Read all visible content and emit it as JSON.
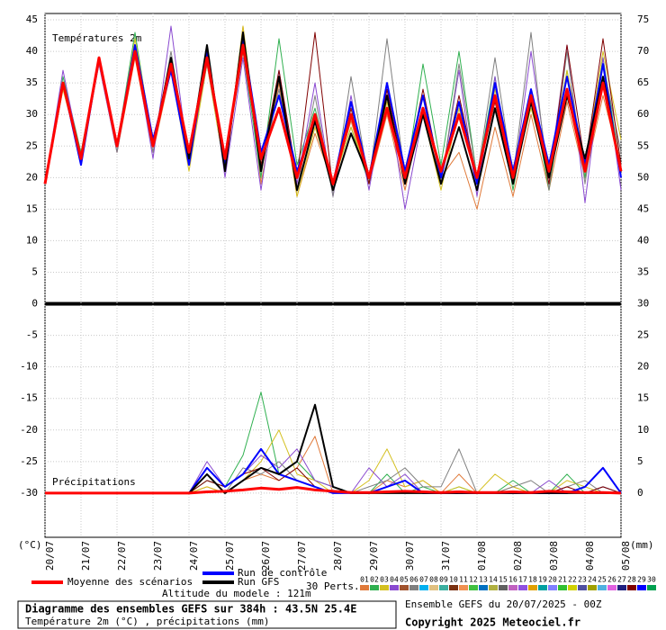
{
  "chart_data": {
    "type": "line",
    "temp_label": "Températures 2m",
    "precip_label": "Précipitations",
    "y_unit": "(°C)",
    "y2_unit": "(mm)",
    "categories": [
      "20/07",
      null,
      "21/07",
      null,
      "22/07",
      null,
      "23/07",
      null,
      "24/07",
      null,
      "25/07",
      null,
      "26/07",
      null,
      "27/07",
      null,
      "28/07",
      null,
      "29/07",
      null,
      "30/07",
      null,
      "31/07",
      null,
      "01/08",
      null,
      "02/08",
      null,
      "03/08",
      null,
      "04/08",
      null,
      "05/08"
    ],
    "ylim": [
      -37,
      46
    ],
    "yticks": [
      45,
      40,
      35,
      30,
      25,
      20,
      15,
      10,
      5,
      0,
      -5,
      -10,
      -15,
      -20,
      -25,
      -30
    ],
    "y2lim": [
      -7,
      76
    ],
    "y2ticks": [
      75,
      70,
      65,
      60,
      55,
      50,
      45,
      40,
      35,
      30,
      25,
      20,
      15,
      10,
      5,
      0
    ],
    "grid": true,
    "series": [
      {
        "name": "Moyenne des scénarios",
        "color": "#ff0000",
        "values": [
          19,
          35,
          23,
          39,
          25,
          40,
          25,
          38,
          24,
          39,
          23,
          41,
          23,
          31,
          20,
          30,
          19,
          30,
          20,
          31,
          20,
          31,
          21,
          30,
          20,
          33,
          20,
          33,
          21,
          34,
          21,
          35,
          21
        ],
        "precip": [
          0,
          0,
          0,
          0,
          0,
          0,
          0,
          0,
          0,
          0.2,
          0.3,
          0.5,
          0.8,
          0.6,
          0.9,
          0.5,
          0.3,
          0.1,
          0.1,
          0.2,
          0.3,
          0.2,
          0.1,
          0.2,
          0.1,
          0.1,
          0.2,
          0.1,
          0.3,
          0.2,
          0.1,
          0.1,
          0
        ]
      },
      {
        "name": "Run de contrôle",
        "color": "#0000ff",
        "values": [
          19,
          35,
          22,
          39,
          25,
          41,
          26,
          37,
          22,
          40,
          22,
          42,
          24,
          33,
          21,
          29,
          19,
          32,
          20,
          35,
          21,
          33,
          20,
          32,
          19,
          35,
          21,
          34,
          22,
          36,
          22,
          38,
          20
        ],
        "precip": [
          0,
          0,
          0,
          0,
          0,
          0,
          0,
          0,
          0,
          4,
          1,
          3,
          7,
          3,
          2,
          1,
          0,
          0,
          0,
          1,
          2,
          0,
          0,
          0,
          0,
          0,
          0,
          0,
          0,
          0,
          1,
          4,
          0
        ]
      },
      {
        "name": "Run GFS",
        "color": "#000000",
        "values": [
          19,
          35,
          23,
          39,
          25,
          40,
          25,
          39,
          23,
          41,
          21,
          43,
          21,
          36,
          18,
          29,
          18,
          27,
          20,
          33,
          19,
          30,
          19,
          28,
          18,
          31,
          19,
          32,
          20,
          33,
          23,
          36,
          21
        ],
        "precip": [
          0,
          0,
          0,
          0,
          0,
          0,
          0,
          0,
          0,
          3,
          0,
          2,
          4,
          3,
          5,
          14,
          1,
          0,
          0,
          0,
          0,
          0,
          0,
          0,
          0,
          0,
          0,
          0,
          0,
          0,
          0,
          0,
          0
        ]
      }
    ],
    "perturbations_label": "30 Perts.",
    "perturbations": [
      {
        "name": "01",
        "color": "#e07a3a",
        "values": [
          19,
          34,
          23,
          38,
          24,
          39,
          24,
          37,
          22,
          38,
          21,
          44,
          19,
          35,
          17,
          27,
          19,
          29,
          19,
          30,
          18,
          31,
          20,
          24,
          15,
          28,
          17,
          30,
          18,
          32,
          20,
          33,
          22
        ],
        "precip": [
          0,
          0,
          0,
          0,
          0,
          0,
          0,
          0,
          0,
          1,
          0,
          2,
          3,
          2,
          4,
          9,
          0,
          0,
          0,
          2,
          1,
          2,
          0,
          3,
          0,
          0,
          1,
          0,
          0,
          1,
          0,
          0,
          0
        ]
      },
      {
        "name": "02",
        "color": "#30b050",
        "values": [
          19,
          36,
          24,
          39,
          25,
          43,
          25,
          38,
          23,
          40,
          22,
          40,
          20,
          42,
          22,
          31,
          19,
          28,
          19,
          33,
          19,
          38,
          22,
          40,
          20,
          36,
          18,
          34,
          18,
          37,
          20,
          39,
          21
        ],
        "precip": [
          0,
          0,
          0,
          0,
          0,
          0,
          0,
          0,
          0,
          2,
          1,
          6,
          16,
          3,
          5,
          2,
          1,
          0,
          0,
          3,
          0,
          1,
          0,
          1,
          0,
          0,
          2,
          0,
          0,
          3,
          0,
          1,
          0
        ]
      },
      {
        "name": "03",
        "color": "#d4c020",
        "values": [
          19,
          34,
          23,
          39,
          25,
          42,
          26,
          37,
          21,
          38,
          21,
          44,
          22,
          36,
          17,
          28,
          19,
          28,
          20,
          32,
          19,
          30,
          18,
          31,
          19,
          34,
          20,
          31,
          21,
          37,
          22,
          40,
          26
        ],
        "precip": [
          0,
          0,
          0,
          0,
          0,
          0,
          0,
          0,
          0,
          1,
          0,
          2,
          5,
          10,
          3,
          2,
          0,
          0,
          2,
          7,
          1,
          2,
          0,
          1,
          0,
          3,
          1,
          0,
          0,
          2,
          1,
          0,
          0
        ]
      },
      {
        "name": "04",
        "color": "#8a4ad0",
        "values": [
          19,
          37,
          23,
          38,
          24,
          40,
          23,
          44,
          22,
          41,
          20,
          39,
          18,
          37,
          19,
          35,
          17,
          33,
          18,
          34,
          15,
          30,
          19,
          37,
          17,
          36,
          19,
          40,
          20,
          41,
          16,
          39,
          18
        ],
        "precip": [
          0,
          0,
          0,
          0,
          0,
          0,
          0,
          0,
          0,
          5,
          1,
          3,
          6,
          4,
          7,
          2,
          1,
          0,
          4,
          1,
          3,
          0,
          0,
          0,
          0,
          0,
          0,
          0,
          2,
          0,
          0,
          1,
          0
        ]
      },
      {
        "name": "05",
        "color": "#a0522d"
      },
      {
        "name": "06",
        "color": "#808080",
        "values": [
          19,
          35,
          22,
          39,
          24,
          40,
          24,
          40,
          23,
          38,
          22,
          42,
          21,
          34,
          18,
          33,
          17,
          36,
          19,
          42,
          20,
          33,
          19,
          38,
          20,
          39,
          20,
          43,
          18,
          40,
          19,
          38,
          24
        ],
        "precip": [
          0,
          0,
          0,
          0,
          0,
          0,
          0,
          0,
          0,
          3,
          0,
          4,
          3,
          5,
          2,
          1,
          0,
          0,
          1,
          2,
          4,
          1,
          1,
          7,
          0,
          0,
          1,
          2,
          0,
          1,
          2,
          0,
          0
        ]
      },
      {
        "name": "07",
        "color": "#00b0f0"
      },
      {
        "name": "08",
        "color": "#e0c080"
      },
      {
        "name": "09",
        "color": "#3cb0a0"
      },
      {
        "name": "10",
        "color": "#7a3010"
      },
      {
        "name": "11",
        "color": "#f09050"
      },
      {
        "name": "12",
        "color": "#40c040"
      },
      {
        "name": "13",
        "color": "#0070c0"
      },
      {
        "name": "14",
        "color": "#b0b040"
      },
      {
        "name": "15",
        "color": "#606060"
      },
      {
        "name": "16",
        "color": "#c060c0"
      },
      {
        "name": "17",
        "color": "#9050e0"
      },
      {
        "name": "18",
        "color": "#e0a000"
      },
      {
        "name": "19",
        "color": "#00a0a0"
      },
      {
        "name": "20",
        "color": "#8080ff"
      },
      {
        "name": "21",
        "color": "#30c030"
      },
      {
        "name": "22",
        "color": "#d0d000"
      },
      {
        "name": "23",
        "color": "#5050a0"
      },
      {
        "name": "24",
        "color": "#a0a000"
      },
      {
        "name": "25",
        "color": "#50b0e0"
      },
      {
        "name": "26",
        "color": "#e060e0"
      },
      {
        "name": "27",
        "color": "#202080"
      },
      {
        "name": "28",
        "color": "#800000",
        "values": [
          19,
          35,
          23,
          39,
          25,
          41,
          25,
          39,
          22,
          40,
          21,
          43,
          22,
          37,
          20,
          43,
          18,
          31,
          19,
          34,
          20,
          34,
          20,
          33,
          20,
          32,
          20,
          34,
          19,
          41,
          22,
          42,
          22
        ],
        "precip": [
          0,
          0,
          0,
          0,
          0,
          0,
          0,
          0,
          0,
          2,
          1,
          3,
          4,
          2,
          4,
          1,
          0,
          0,
          0,
          0,
          0,
          0,
          0,
          0,
          0,
          0,
          0,
          0,
          0,
          1,
          0,
          1,
          0
        ]
      },
      {
        "name": "29",
        "color": "#0000ff"
      },
      {
        "name": "30",
        "color": "#00a050"
      }
    ],
    "altitude": "Altitude du modele : 121m",
    "title": "Diagramme des ensembles GEFS sur 384h : 43.5N 25.4E",
    "subtitle": "Température 2m (°C) , précipitations (mm)",
    "run_info": "Ensemble GEFS du 20/07/2025 - 00Z",
    "copyright": "Copyright 2025 Meteociel.fr"
  }
}
